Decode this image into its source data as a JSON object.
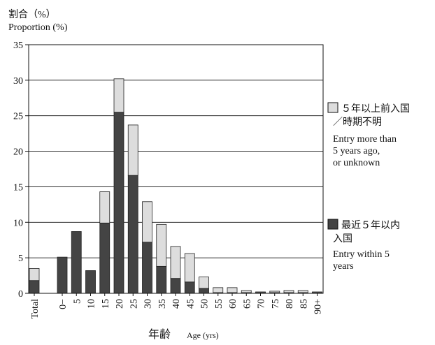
{
  "chart_data": {
    "type": "bar",
    "stacked": true,
    "ylabel_ja": "割合（%）",
    "ylabel": "Proportion (%)",
    "xlabel_ja": "年齢",
    "xlabel": "Age (yrs)",
    "ylim": [
      0,
      35
    ],
    "yticks": [
      "0",
      "5",
      "10",
      "15",
      "20",
      "25",
      "30",
      "35"
    ],
    "grid": "horizontal",
    "legend_position": "right",
    "categories": [
      "Total",
      "0−",
      "5",
      "10",
      "15",
      "20",
      "25",
      "30",
      "35",
      "40",
      "45",
      "50",
      "55",
      "60",
      "65",
      "70",
      "75",
      "80",
      "85",
      "90+"
    ],
    "series": [
      {
        "name_ja": "最近５年以内入国",
        "name": "Entry within 5 years",
        "color": "#444444",
        "values": [
          1.8,
          5.1,
          8.7,
          3.2,
          9.9,
          25.5,
          16.6,
          7.2,
          3.8,
          2.1,
          1.6,
          0.7,
          0.1,
          0.1,
          0.1,
          0.1,
          0.1,
          0.1,
          0.1,
          0.1
        ]
      },
      {
        "name_ja": "５年以上前入国／時期不明",
        "name": "Entry more than 5 years ago, or unknown",
        "color": "#dddddd",
        "values": [
          1.7,
          0.0,
          0.0,
          0.0,
          4.4,
          4.7,
          7.1,
          5.7,
          5.9,
          4.5,
          4.0,
          1.6,
          0.7,
          0.7,
          0.3,
          0.1,
          0.2,
          0.3,
          0.3,
          0.1
        ]
      }
    ]
  }
}
